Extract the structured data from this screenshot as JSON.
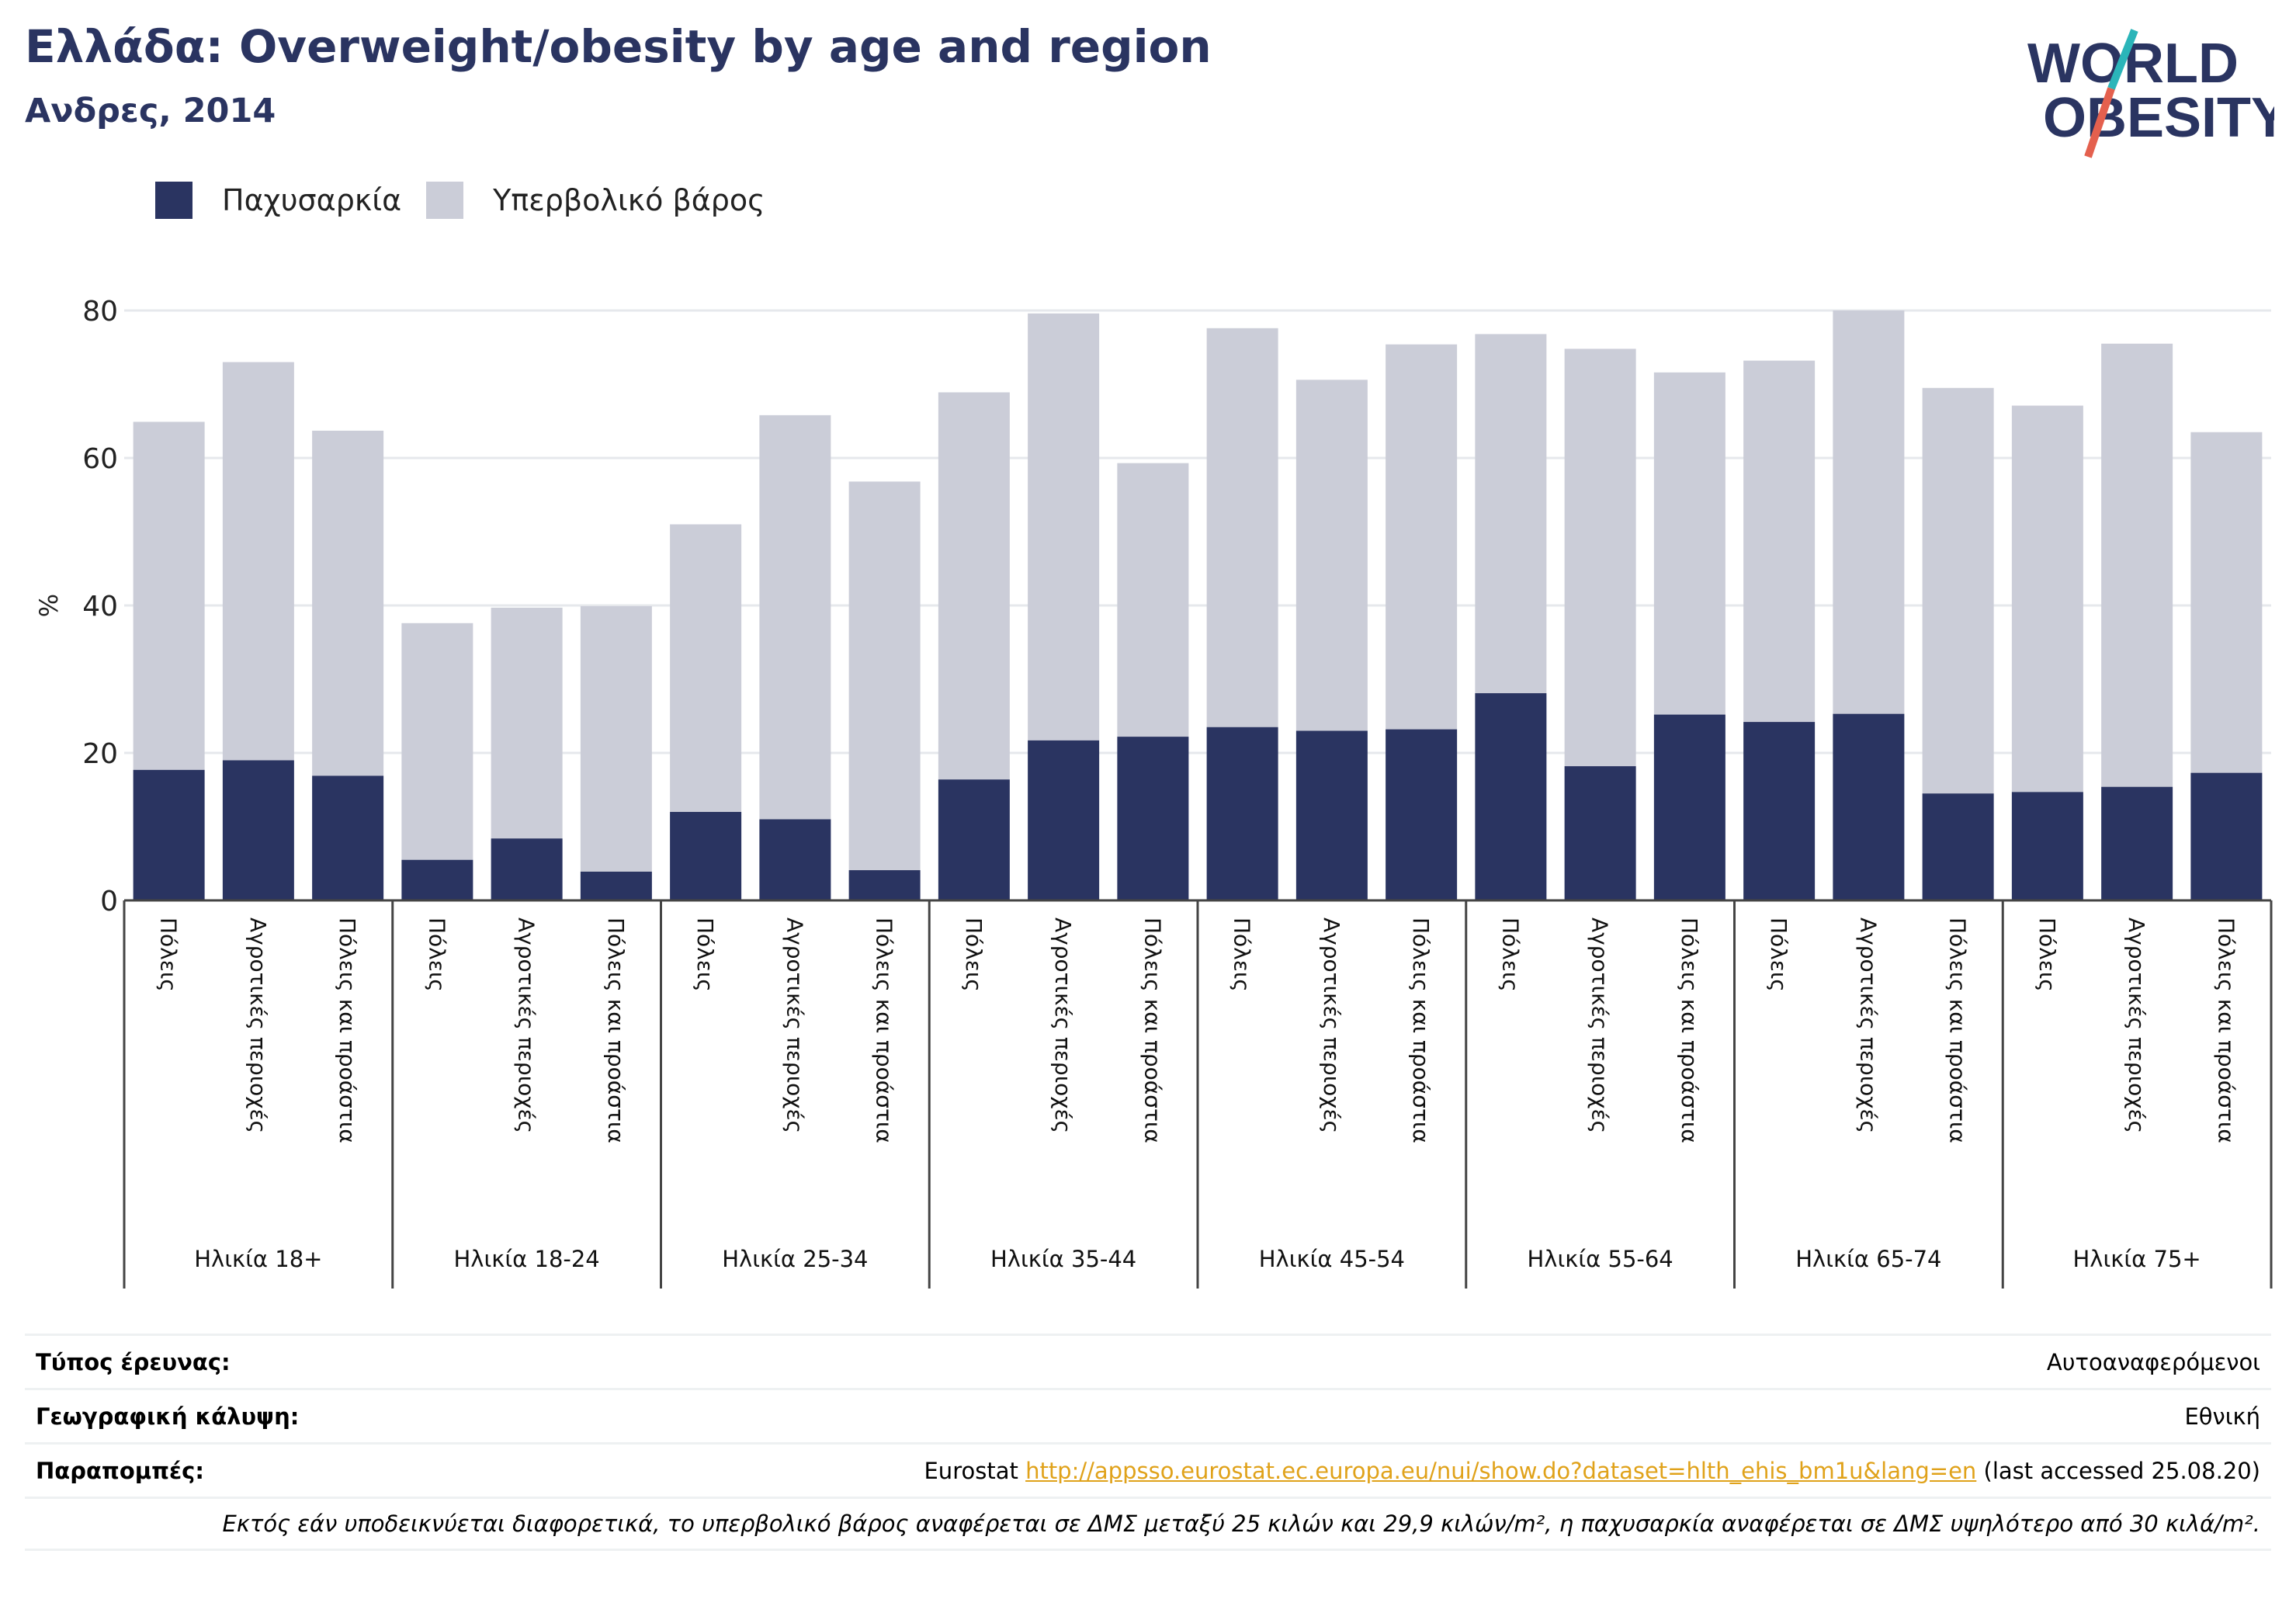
{
  "header": {
    "title": "Ελλάδα: Overweight/obesity by age and region",
    "subtitle": "Ανδρες, 2014",
    "logo_text": [
      "WORLD",
      "OBESITY"
    ]
  },
  "colors": {
    "obesity": "#2a3461",
    "overweight": "#cbcdd8",
    "logo_slash_top": "#2bb5b9",
    "logo_slash_bottom": "#e4604e",
    "link": "#e0a21a"
  },
  "legend": {
    "obesity_label": "Παχυσαρκία",
    "overweight_label": "Υπερβολικό βάρος"
  },
  "chart_data": {
    "type": "bar",
    "stacked": true,
    "ylabel": "%",
    "ylim": [
      0,
      80
    ],
    "yticks": [
      0,
      20,
      40,
      60,
      80
    ],
    "grid": true,
    "legend_position": "top-left",
    "groups": [
      {
        "label": "Ηλικία 18+",
        "bars": [
          {
            "label": "Πόλεις",
            "obesity": 17.7,
            "total": 64.9
          },
          {
            "label": "Αγροτικές περιοχές",
            "obesity": 19.0,
            "total": 73.0
          },
          {
            "label": "Πόλεις και προάστια",
            "obesity": 16.9,
            "total": 63.7
          }
        ]
      },
      {
        "label": "Ηλικία 18-24",
        "bars": [
          {
            "label": "Πόλεις",
            "obesity": 5.5,
            "total": 37.6
          },
          {
            "label": "Αγροτικές περιοχές",
            "obesity": 8.4,
            "total": 39.7
          },
          {
            "label": "Πόλεις και προάστια",
            "obesity": 3.9,
            "total": 39.9
          }
        ]
      },
      {
        "label": "Ηλικία 25-34",
        "bars": [
          {
            "label": "Πόλεις",
            "obesity": 12.0,
            "total": 51.0
          },
          {
            "label": "Αγροτικές περιοχές",
            "obesity": 11.0,
            "total": 65.8
          },
          {
            "label": "Πόλεις και προάστια",
            "obesity": 4.1,
            "total": 56.8
          }
        ]
      },
      {
        "label": "Ηλικία 35-44",
        "bars": [
          {
            "label": "Πόλεις",
            "obesity": 16.4,
            "total": 68.9
          },
          {
            "label": "Αγροτικές περιοχές",
            "obesity": 21.7,
            "total": 79.6
          },
          {
            "label": "Πόλεις και προάστια",
            "obesity": 22.2,
            "total": 59.3
          }
        ]
      },
      {
        "label": "Ηλικία 45-54",
        "bars": [
          {
            "label": "Πόλεις",
            "obesity": 23.5,
            "total": 77.6
          },
          {
            "label": "Αγροτικές περιοχές",
            "obesity": 23.0,
            "total": 70.6
          },
          {
            "label": "Πόλεις και προάστια",
            "obesity": 23.2,
            "total": 75.4
          }
        ]
      },
      {
        "label": "Ηλικία 55-64",
        "bars": [
          {
            "label": "Πόλεις",
            "obesity": 28.1,
            "total": 76.8
          },
          {
            "label": "Αγροτικές περιοχές",
            "obesity": 18.2,
            "total": 74.8
          },
          {
            "label": "Πόλεις και προάστια",
            "obesity": 25.2,
            "total": 71.6
          }
        ]
      },
      {
        "label": "Ηλικία 65-74",
        "bars": [
          {
            "label": "Πόλεις",
            "obesity": 24.2,
            "total": 73.2
          },
          {
            "label": "Αγροτικές περιοχές",
            "obesity": 25.3,
            "total": 80.0
          },
          {
            "label": "Πόλεις και προάστια",
            "obesity": 14.5,
            "total": 69.5
          }
        ]
      },
      {
        "label": "Ηλικία 75+",
        "bars": [
          {
            "label": "Πόλεις",
            "obesity": 14.7,
            "total": 67.1
          },
          {
            "label": "Αγροτικές περιοχές",
            "obesity": 15.4,
            "total": 75.5
          },
          {
            "label": "Πόλεις και προάστια",
            "obesity": 17.3,
            "total": 63.5
          }
        ]
      }
    ]
  },
  "meta": {
    "survey_label": "Τύπος έρευνας:",
    "survey_value": "Αυτοαναφερόμενοι",
    "coverage_label": "Γεωγραφική κάλυψη:",
    "coverage_value": "Εθνική",
    "refs_label": "Παραπομπές:",
    "refs_prefix": "Eurostat",
    "refs_url": "http://appsso.eurostat.ec.europa.eu/nui/show.do?dataset=hlth_ehis_bm1u&lang=en",
    "refs_suffix": "(last accessed 25.08.20)",
    "note": "Εκτός εάν υποδεικνύεται διαφορετικά, το υπερβολικό βάρος αναφέρεται σε ΔΜΣ μεταξύ 25 κιλών και 29,9 κιλών/m², η παχυσαρκία αναφέρεται σε ΔΜΣ υψηλότερο από 30 κιλά/m²."
  }
}
